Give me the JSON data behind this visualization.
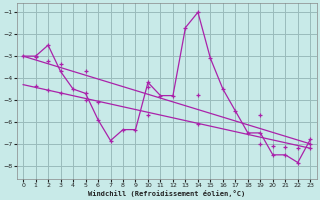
{
  "xlabel": "Windchill (Refroidissement éolien,°C)",
  "bg_color": "#c8eae8",
  "line_color": "#aa22aa",
  "grid_color": "#99bbbb",
  "xlim": [
    -0.5,
    23.5
  ],
  "ylim": [
    -8.6,
    -0.6
  ],
  "yticks": [
    -8,
    -7,
    -6,
    -5,
    -4,
    -3,
    -2,
    -1
  ],
  "xticks": [
    0,
    1,
    2,
    3,
    4,
    5,
    6,
    7,
    8,
    9,
    10,
    11,
    12,
    13,
    14,
    15,
    16,
    17,
    18,
    19,
    20,
    21,
    22,
    23
  ],
  "line1_x": [
    0,
    1,
    2,
    3,
    4,
    5,
    6,
    7,
    8,
    9,
    10,
    11,
    12,
    13,
    14,
    15,
    16,
    17,
    18,
    19,
    20,
    21,
    22,
    23
  ],
  "line1_y": [
    -3.0,
    -3.0,
    -2.5,
    -3.7,
    -4.5,
    -4.7,
    -5.9,
    -6.85,
    -6.35,
    -6.35,
    -4.2,
    -4.8,
    -4.8,
    -1.7,
    -1.0,
    -3.1,
    -4.5,
    -5.5,
    -6.5,
    -6.5,
    -7.5,
    -7.5,
    -7.85,
    -6.8
  ],
  "line2_x": [
    0,
    23
  ],
  "line2_y": [
    -3.0,
    -7.0
  ],
  "line2_pts_x": [
    1,
    2,
    3,
    5,
    10,
    14,
    19,
    23
  ],
  "line2_pts_y": [
    -3.05,
    -3.2,
    -3.35,
    -3.7,
    -4.4,
    -4.75,
    -5.7,
    -7.0
  ],
  "line3_x": [
    0,
    23
  ],
  "line3_y": [
    -4.3,
    -7.2
  ],
  "line3_pts_x": [
    1,
    2,
    3,
    5,
    6,
    10,
    14,
    19,
    20,
    21,
    22,
    23
  ],
  "line3_pts_y": [
    -4.35,
    -4.55,
    -4.7,
    -5.0,
    -5.1,
    -5.7,
    -6.1,
    -7.0,
    -7.1,
    -7.15,
    -7.2,
    -7.2
  ]
}
